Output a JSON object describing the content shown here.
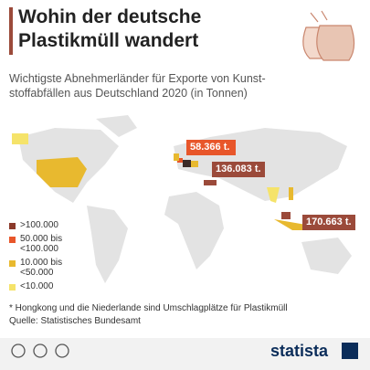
{
  "header": {
    "title": [
      "Wohin der deutsche",
      "Plastikmüll wandert"
    ],
    "subtitle": [
      "Wichtigste Abnehmerländer für Exporte von Kunst-",
      "stoffabfällen aus Deutschland 2020 (in Tonnen)"
    ]
  },
  "callouts": [
    "58.366 t.",
    "136.083 t.",
    "170.663 t."
  ],
  "legend": [
    ">100.000",
    [
      "50.000 bis",
      "<100.000"
    ],
    [
      "10.000 bis",
      "<50.000"
    ],
    "<10.000"
  ],
  "footer": {
    "note": "* Hongkong und die Niederlande sind Umschlagplätze für Plastikmüll",
    "source": "Quelle: Statistisches Bundesamt",
    "brand": "statista"
  }
}
